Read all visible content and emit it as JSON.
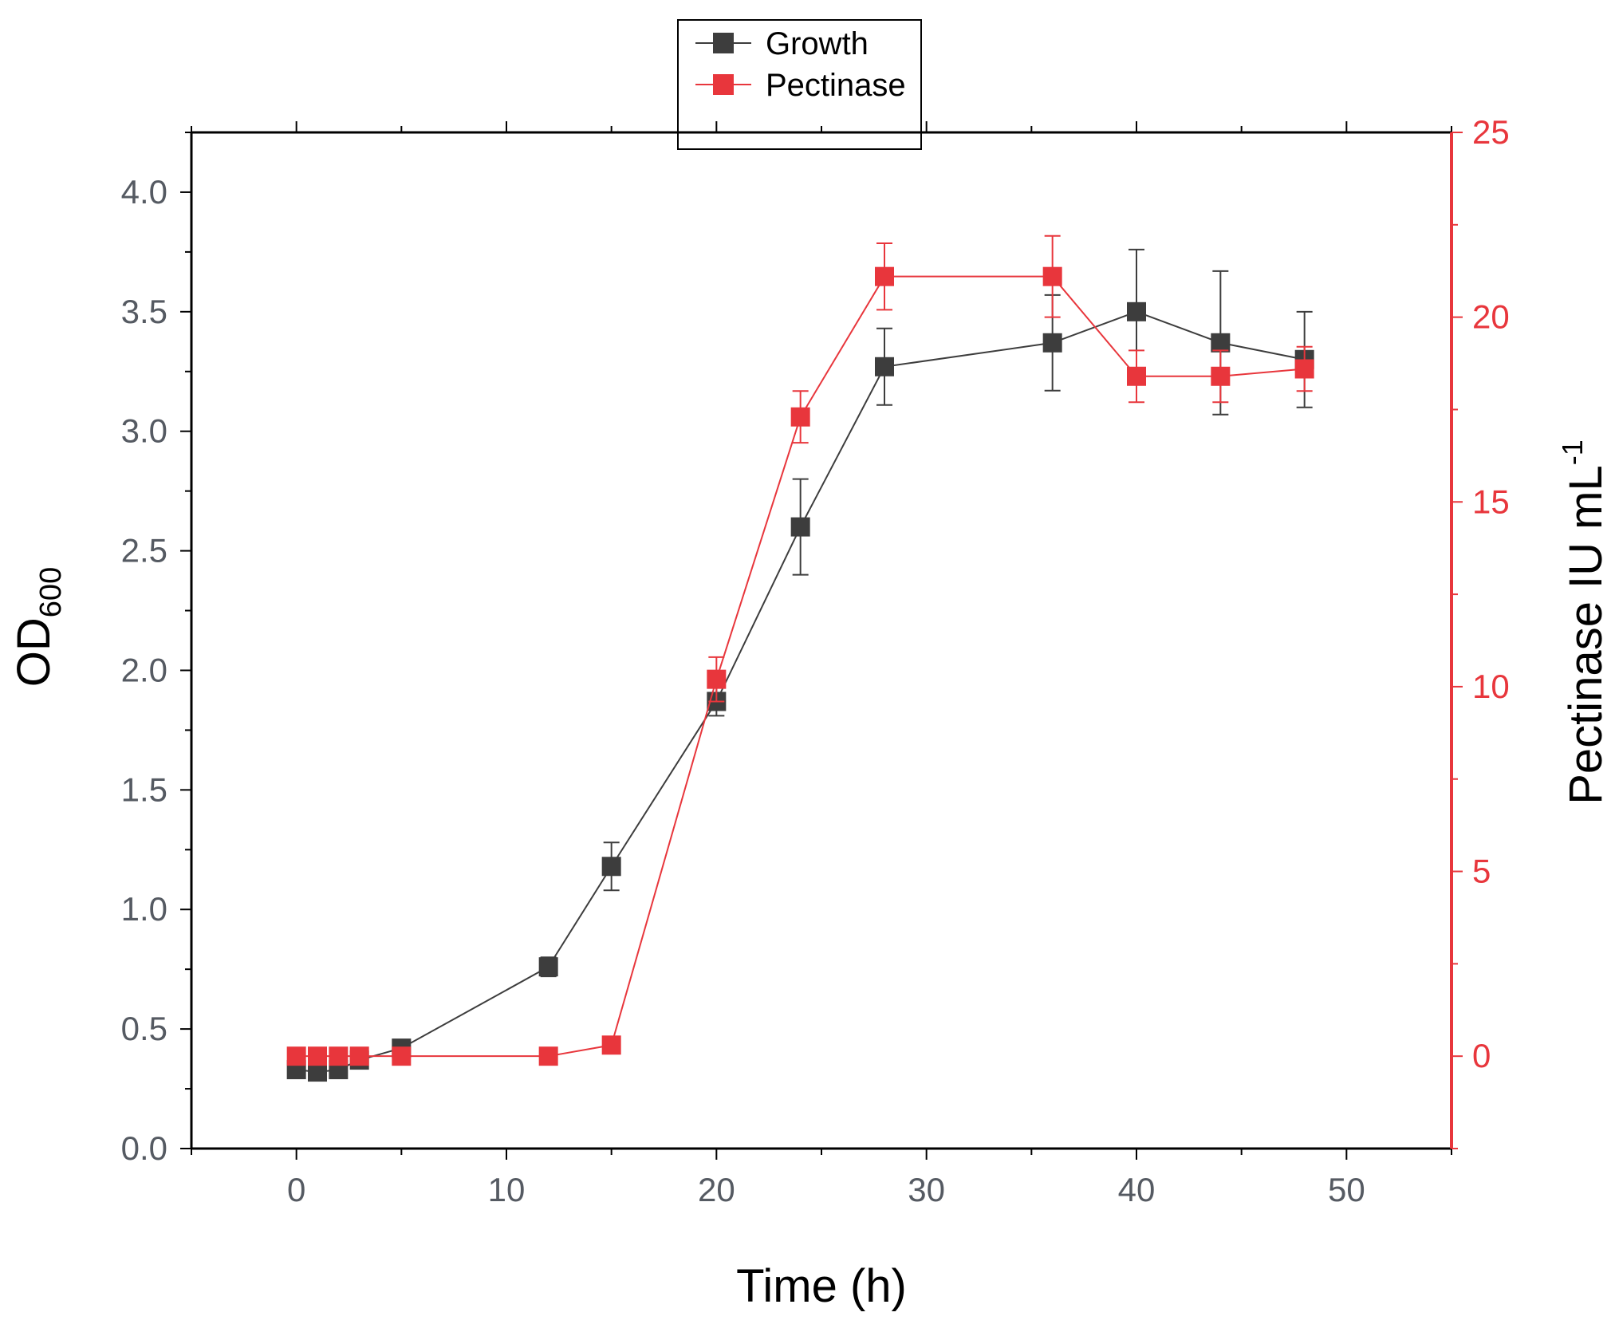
{
  "chart_data": {
    "type": "line",
    "title": "",
    "xlabel": "Time (h)",
    "ylabel_left_main": "OD",
    "ylabel_left_sub": "600",
    "ylabel_right_main": "Pectinase IU mL",
    "ylabel_right_sup": "-1",
    "xlim": [
      -5,
      55
    ],
    "ylim_left": [
      0,
      4.25
    ],
    "ylim_right": [
      -2.5,
      25
    ],
    "x_ticks": [
      0,
      10,
      20,
      30,
      40,
      50
    ],
    "x_tick_labels": [
      "0",
      "10",
      "20",
      "30",
      "40",
      "50"
    ],
    "y_left_ticks": [
      0,
      0.5,
      1.0,
      1.5,
      2.0,
      2.5,
      3.0,
      3.5,
      4.0
    ],
    "y_left_tick_labels": [
      "0.0",
      "0.5",
      "1.0",
      "1.5",
      "2.0",
      "2.5",
      "3.0",
      "3.5",
      "4.0"
    ],
    "y_right_ticks": [
      0,
      5,
      10,
      15,
      20,
      25
    ],
    "y_right_tick_labels": [
      "0",
      "5",
      "10",
      "15",
      "20",
      "25"
    ],
    "legend_position": "top-center",
    "series": [
      {
        "name": "Growth",
        "axis": "left",
        "color": "#3d3d3d",
        "x": [
          0,
          1,
          2,
          3,
          5,
          12,
          15,
          20,
          24,
          28,
          36,
          40,
          44,
          48
        ],
        "y": [
          0.33,
          0.32,
          0.33,
          0.37,
          0.42,
          0.76,
          1.18,
          1.87,
          2.6,
          3.27,
          3.37,
          3.5,
          3.37,
          3.3
        ],
        "error": [
          0,
          0,
          0,
          0,
          0,
          0.04,
          0.1,
          0.06,
          0.2,
          0.16,
          0.2,
          0.26,
          0.3,
          0.2
        ]
      },
      {
        "name": "Pectinase",
        "axis": "right",
        "color": "#e8363c",
        "x": [
          0,
          1,
          2,
          3,
          5,
          12,
          15,
          20,
          24,
          28,
          36,
          40,
          44,
          48
        ],
        "y": [
          0,
          0,
          0,
          0,
          0,
          0,
          0.3,
          10.2,
          17.3,
          21.1,
          21.1,
          18.4,
          18.4,
          18.6
        ],
        "error": [
          0,
          0,
          0,
          0,
          0,
          0,
          0,
          0.6,
          0.7,
          0.9,
          1.1,
          0.7,
          0.7,
          0.6
        ]
      }
    ],
    "colors": {
      "axis_black": "#000000",
      "right_axis_red": "#e8363c",
      "tick_text_gray": "#555a62"
    }
  }
}
